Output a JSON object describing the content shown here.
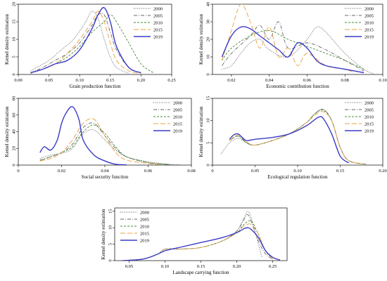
{
  "chart_data": [
    {
      "type": "line",
      "xlabel": "Grain production function",
      "ylabel": "Kernel density estimation",
      "xlim": [
        0,
        0.25
      ],
      "ylim": [
        0,
        20
      ],
      "xticks": [
        0,
        0.05,
        0.1,
        0.15,
        0.2,
        0.25
      ],
      "xtick_labels": [
        "0.00",
        "0.05",
        "0.10",
        "0.15",
        "0.20",
        "0.25"
      ],
      "yticks": [
        0,
        5,
        10,
        15,
        20
      ],
      "ytick_labels": [
        "0",
        "5",
        "10",
        "15",
        "20"
      ],
      "legend_position": "top-right",
      "series": [
        {
          "name": "2000",
          "style": "dotted",
          "color": "#555555",
          "x": [
            0.02,
            0.03,
            0.05,
            0.07,
            0.09,
            0.11,
            0.12,
            0.13,
            0.14,
            0.15,
            0.16,
            0.18
          ],
          "y": [
            1,
            2,
            4,
            7,
            10,
            15,
            18,
            16,
            10,
            5,
            2,
            0.3
          ]
        },
        {
          "name": "2005",
          "style": "dash-dot",
          "color": "#666666",
          "x": [
            0.02,
            0.04,
            0.06,
            0.08,
            0.1,
            0.12,
            0.13,
            0.14,
            0.15,
            0.16,
            0.18,
            0.2
          ],
          "y": [
            0.5,
            2,
            4,
            6,
            9,
            14,
            17,
            17,
            12,
            7,
            2,
            0.5
          ]
        },
        {
          "name": "2010",
          "style": "dashed",
          "color": "#4a8a3a",
          "x": [
            0.02,
            0.04,
            0.06,
            0.08,
            0.1,
            0.12,
            0.14,
            0.15,
            0.16,
            0.18,
            0.2,
            0.22
          ],
          "y": [
            0.3,
            1.5,
            3,
            5,
            8,
            12,
            15,
            17,
            15,
            9,
            3,
            0.5
          ]
        },
        {
          "name": "2015",
          "style": "long-dash",
          "color": "#e8a040",
          "x": [
            0.02,
            0.04,
            0.06,
            0.08,
            0.1,
            0.12,
            0.13,
            0.14,
            0.15,
            0.16,
            0.18,
            0.2
          ],
          "y": [
            0.5,
            1.5,
            3,
            6,
            10,
            15,
            18,
            15,
            9,
            4,
            1,
            0.3
          ]
        },
        {
          "name": "2019",
          "style": "solid",
          "color": "#3a3ac8",
          "x": [
            0.02,
            0.04,
            0.06,
            0.08,
            0.1,
            0.12,
            0.13,
            0.14,
            0.15,
            0.16,
            0.18,
            0.2
          ],
          "y": [
            0.5,
            1.5,
            3,
            4,
            7,
            13,
            17,
            19,
            15,
            8,
            2,
            0.5
          ]
        }
      ]
    },
    {
      "type": "line",
      "xlabel": "Economic contribution function",
      "ylabel": "Kernel density estimation",
      "xlim": [
        0.01,
        0.1
      ],
      "ylim": [
        0,
        40
      ],
      "xticks": [
        0.02,
        0.04,
        0.06,
        0.08,
        0.1
      ],
      "xtick_labels": [
        "0.02",
        "0.04",
        "0.06",
        "0.08",
        "0.10"
      ],
      "yticks": [
        0,
        10,
        20,
        30,
        40
      ],
      "ytick_labels": [
        "0",
        "10",
        "20",
        "30",
        "40"
      ],
      "legend_position": "top-right",
      "series": [
        {
          "name": "2000",
          "style": "dotted",
          "color": "#555555",
          "x": [
            0.015,
            0.02,
            0.025,
            0.03,
            0.035,
            0.04,
            0.05,
            0.06,
            0.065,
            0.07,
            0.08,
            0.09,
            0.095
          ],
          "y": [
            3,
            5,
            12,
            18,
            20,
            14,
            10,
            20,
            27,
            24,
            12,
            3,
            0.5
          ]
        },
        {
          "name": "2005",
          "style": "dash-dot",
          "color": "#666666",
          "x": [
            0.015,
            0.02,
            0.03,
            0.035,
            0.04,
            0.045,
            0.05,
            0.06,
            0.07,
            0.08,
            0.09
          ],
          "y": [
            5,
            12,
            22,
            28,
            20,
            30,
            15,
            18,
            14,
            8,
            2
          ]
        },
        {
          "name": "2010",
          "style": "dashed",
          "color": "#4a8a3a",
          "x": [
            0.015,
            0.02,
            0.03,
            0.04,
            0.05,
            0.06,
            0.07,
            0.08,
            0.09
          ],
          "y": [
            8,
            15,
            22,
            25,
            20,
            16,
            12,
            8,
            3
          ]
        },
        {
          "name": "2015",
          "style": "long-dash",
          "color": "#e8a040",
          "x": [
            0.015,
            0.02,
            0.025,
            0.03,
            0.035,
            0.04,
            0.045,
            0.05,
            0.055,
            0.06,
            0.07,
            0.08,
            0.085
          ],
          "y": [
            8,
            25,
            40,
            30,
            15,
            27,
            10,
            15,
            5,
            12,
            5,
            3,
            1
          ]
        },
        {
          "name": "2019",
          "style": "solid",
          "color": "#3a3ac8",
          "x": [
            0.015,
            0.02,
            0.025,
            0.03,
            0.035,
            0.04,
            0.045,
            0.05,
            0.055,
            0.06,
            0.065,
            0.07,
            0.08,
            0.09
          ],
          "y": [
            10,
            22,
            27,
            26,
            22,
            18,
            14,
            10,
            18,
            15,
            8,
            5,
            3,
            1
          ]
        }
      ]
    },
    {
      "type": "line",
      "xlabel": "Social security function",
      "ylabel": "Kernel density estimation",
      "xlim": [
        0,
        0.08
      ],
      "ylim": [
        0,
        80
      ],
      "xticks": [
        0,
        0.02,
        0.04,
        0.06,
        0.08
      ],
      "xtick_labels": [
        "0",
        "0.02",
        "0.04",
        "0.06",
        "0.08"
      ],
      "yticks": [
        0,
        20,
        40,
        60,
        80
      ],
      "ytick_labels": [
        "0",
        "20",
        "40",
        "60",
        "80"
      ],
      "legend_position": "top-right",
      "series": [
        {
          "name": "2000",
          "style": "dotted",
          "color": "#555555",
          "x": [
            0.01,
            0.015,
            0.02,
            0.025,
            0.03,
            0.035,
            0.04,
            0.045,
            0.05,
            0.06,
            0.07,
            0.075
          ],
          "y": [
            8,
            12,
            14,
            20,
            38,
            42,
            30,
            18,
            10,
            4,
            1,
            0.3
          ]
        },
        {
          "name": "2005",
          "style": "dash-dot",
          "color": "#666666",
          "x": [
            0.01,
            0.015,
            0.02,
            0.025,
            0.03,
            0.035,
            0.04,
            0.045,
            0.05,
            0.06,
            0.07
          ],
          "y": [
            6,
            10,
            15,
            25,
            45,
            50,
            35,
            20,
            10,
            3,
            0.5
          ]
        },
        {
          "name": "2010",
          "style": "dashed",
          "color": "#4a8a3a",
          "x": [
            0.01,
            0.015,
            0.02,
            0.025,
            0.03,
            0.035,
            0.04,
            0.045,
            0.05,
            0.06,
            0.07
          ],
          "y": [
            5,
            10,
            15,
            22,
            40,
            48,
            38,
            22,
            10,
            3,
            0.5
          ]
        },
        {
          "name": "2015",
          "style": "long-dash",
          "color": "#e8a040",
          "x": [
            0.01,
            0.015,
            0.02,
            0.025,
            0.03,
            0.035,
            0.04,
            0.045,
            0.05,
            0.06,
            0.065
          ],
          "y": [
            5,
            8,
            15,
            30,
            50,
            55,
            35,
            15,
            6,
            2,
            0.5
          ]
        },
        {
          "name": "2019",
          "style": "solid",
          "color": "#3a3ac8",
          "x": [
            0.01,
            0.012,
            0.015,
            0.018,
            0.02,
            0.022,
            0.025,
            0.028,
            0.03,
            0.035,
            0.04,
            0.045,
            0.05
          ],
          "y": [
            15,
            22,
            18,
            30,
            50,
            62,
            70,
            55,
            30,
            12,
            5,
            1,
            0.3
          ]
        }
      ]
    },
    {
      "type": "line",
      "xlabel": "Ecological regulation function",
      "ylabel": "Kernel density estimation",
      "xlim": [
        0,
        0.2
      ],
      "ylim": [
        0,
        15
      ],
      "xticks": [
        0,
        0.05,
        0.1,
        0.15,
        0.2
      ],
      "xtick_labels": [
        "0",
        "0.05",
        "0.10",
        "0.15",
        "0.20"
      ],
      "yticks": [
        0,
        5,
        10,
        15
      ],
      "ytick_labels": [
        "0",
        "5",
        "10",
        "15"
      ],
      "legend_position": "top-right",
      "series": [
        {
          "name": "2000",
          "style": "dotted",
          "color": "#555555",
          "x": [
            0.01,
            0.02,
            0.03,
            0.04,
            0.05,
            0.07,
            0.09,
            0.11,
            0.12,
            0.13,
            0.14,
            0.15,
            0.16,
            0.18
          ],
          "y": [
            2.5,
            5,
            6,
            5,
            4.5,
            5.5,
            7,
            9.5,
            11.5,
            12.5,
            10,
            4,
            1,
            0.2
          ]
        },
        {
          "name": "2005",
          "style": "dash-dot",
          "color": "#666666",
          "x": [
            0.02,
            0.03,
            0.04,
            0.05,
            0.07,
            0.09,
            0.11,
            0.12,
            0.13,
            0.14,
            0.15,
            0.16,
            0.18
          ],
          "y": [
            5.5,
            6.5,
            5,
            4.5,
            5.5,
            7,
            9.5,
            11.5,
            12.5,
            10,
            4,
            1,
            0.2
          ]
        },
        {
          "name": "2010",
          "style": "dashed",
          "color": "#4a8a3a",
          "x": [
            0.02,
            0.03,
            0.04,
            0.05,
            0.07,
            0.09,
            0.11,
            0.12,
            0.13,
            0.14,
            0.15,
            0.16,
            0.18
          ],
          "y": [
            5.5,
            6.5,
            5,
            4.5,
            5.5,
            7,
            9.5,
            11.5,
            12.3,
            10,
            4,
            1,
            0.2
          ]
        },
        {
          "name": "2015",
          "style": "long-dash",
          "color": "#e8a040",
          "x": [
            0.02,
            0.03,
            0.04,
            0.05,
            0.07,
            0.09,
            0.11,
            0.12,
            0.13,
            0.14,
            0.15,
            0.16,
            0.18
          ],
          "y": [
            5.5,
            6.8,
            5.2,
            4.5,
            5.5,
            7,
            9.5,
            11.2,
            12,
            10,
            4,
            1,
            0.2
          ]
        },
        {
          "name": "2019",
          "style": "solid",
          "color": "#3a3ac8",
          "x": [
            0.02,
            0.025,
            0.03,
            0.035,
            0.04,
            0.05,
            0.07,
            0.09,
            0.11,
            0.12,
            0.125,
            0.13,
            0.14,
            0.15,
            0.16
          ],
          "y": [
            5.8,
            6.8,
            7,
            6.2,
            5.5,
            5.8,
            6.2,
            7,
            8.8,
            10.2,
            10.8,
            10.5,
            7,
            2,
            0.5
          ]
        }
      ]
    },
    {
      "type": "line",
      "xlabel": "Landscape carrying function",
      "ylabel": "Kernel density estimation",
      "xlim": [
        0.03,
        0.27
      ],
      "ylim": [
        0,
        16
      ],
      "xticks": [
        0.05,
        0.1,
        0.15,
        0.2,
        0.25
      ],
      "xtick_labels": [
        "0.05",
        "0.10",
        "0.15",
        "0.20",
        "0.25"
      ],
      "yticks": [
        0,
        5,
        10,
        15
      ],
      "ytick_labels": [
        "0",
        "5",
        "10",
        "15"
      ],
      "legend_position": "top-left",
      "series": [
        {
          "name": "2000",
          "style": "dotted",
          "color": "#555555",
          "x": [
            0.04,
            0.07,
            0.09,
            0.1,
            0.12,
            0.15,
            0.18,
            0.2,
            0.21,
            0.215,
            0.22,
            0.23,
            0.235
          ],
          "y": [
            0,
            0.5,
            2,
            3.5,
            3.5,
            4,
            6,
            9,
            13,
            15,
            13,
            5,
            1
          ]
        },
        {
          "name": "2005",
          "style": "dash-dot",
          "color": "#666666",
          "x": [
            0.04,
            0.07,
            0.09,
            0.1,
            0.12,
            0.15,
            0.18,
            0.2,
            0.21,
            0.215,
            0.22,
            0.23,
            0.24,
            0.25
          ],
          "y": [
            0,
            0.5,
            2,
            3.5,
            3.5,
            4,
            6,
            9,
            12.5,
            14,
            12,
            6,
            2,
            0.5
          ]
        },
        {
          "name": "2010",
          "style": "dashed",
          "color": "#4a8a3a",
          "x": [
            0.04,
            0.07,
            0.09,
            0.1,
            0.12,
            0.15,
            0.18,
            0.2,
            0.21,
            0.22,
            0.23,
            0.24,
            0.25
          ],
          "y": [
            0,
            0.5,
            2,
            3.5,
            3.5,
            4,
            6,
            8.5,
            11,
            12,
            8,
            3,
            0.5
          ]
        },
        {
          "name": "2015",
          "style": "long-dash",
          "color": "#e8a040",
          "x": [
            0.04,
            0.07,
            0.09,
            0.1,
            0.12,
            0.15,
            0.18,
            0.2,
            0.21,
            0.22,
            0.23,
            0.24,
            0.25
          ],
          "y": [
            0,
            0.5,
            2,
            3.5,
            3.5,
            4,
            6,
            8.5,
            10.5,
            11,
            8,
            3,
            0.5
          ]
        },
        {
          "name": "2019",
          "style": "solid",
          "color": "#3a3ac8",
          "x": [
            0.04,
            0.07,
            0.09,
            0.1,
            0.12,
            0.15,
            0.18,
            0.2,
            0.21,
            0.215,
            0.22,
            0.23,
            0.24,
            0.25,
            0.26
          ],
          "y": [
            0,
            0.5,
            2,
            3,
            4,
            5.5,
            7,
            8.5,
            9.7,
            10,
            9.5,
            7,
            3,
            1,
            0.2
          ]
        }
      ]
    }
  ]
}
